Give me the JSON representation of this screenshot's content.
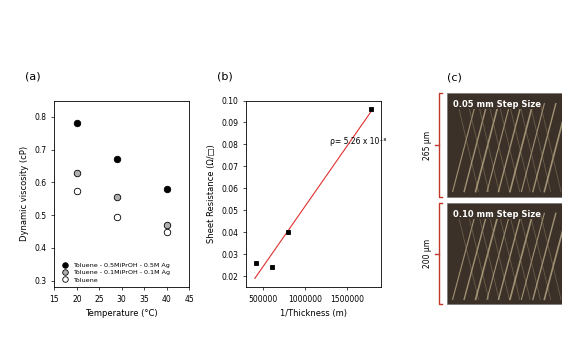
{
  "chart_data": [
    {
      "type": "scatter",
      "title": "(a)",
      "x_label": "Temperature (°C)",
      "y_label": "Dynamic viscosity (cP)",
      "x": [
        20,
        29,
        40
      ],
      "series": [
        {
          "name": "Toluene - 0.5MiPrOH - 0.5M Ag",
          "color": "#000000",
          "marker": "circle",
          "values": [
            0.78,
            0.67,
            0.58
          ]
        },
        {
          "name": "Toluene - 0.1MiPrOH - 0.1M Ag",
          "color": "#b0b0b0",
          "marker": "circle",
          "values": [
            0.63,
            0.555,
            0.47
          ]
        },
        {
          "name": "Toluene",
          "color": "#ffffff",
          "marker": "circle",
          "values": [
            0.575,
            0.495,
            0.45
          ]
        }
      ],
      "xlim": [
        15,
        45
      ],
      "xticks": [
        15,
        20,
        25,
        30,
        35,
        40,
        45
      ],
      "ylim": [
        0.28,
        0.85
      ],
      "yticks": [
        0.3,
        0.4,
        0.5,
        0.6,
        0.7,
        0.8
      ],
      "legend": "lower left"
    },
    {
      "type": "scatter",
      "title": "(b)",
      "x_label": "1/Thickness (m)",
      "y_label": "Sheet Resistance (Ω/□)",
      "annotation": "ρ= 5.26 x 10⁻⁸",
      "series": [
        {
          "color": "#000000",
          "marker": "square",
          "x": [
            420000,
            600000,
            800000,
            1780000
          ],
          "values": [
            0.026,
            0.024,
            0.04,
            0.096
          ]
        },
        {
          "type": "line",
          "color": "#e03030",
          "x": [
            400000,
            1800000
          ],
          "values": [
            0.019,
            0.096
          ]
        }
      ],
      "xlim": [
        300000,
        1900000
      ],
      "xticks": [
        500000,
        1000000,
        1500000
      ],
      "ylim": [
        0.015,
        0.1
      ],
      "yticks": [
        0.02,
        0.03,
        0.04,
        0.05,
        0.06,
        0.07,
        0.08,
        0.09,
        {
          "value": 0.1,
          "label": "0.10"
        }
      ]
    }
  ],
  "image_panel": {
    "title": "(c)",
    "images": [
      {
        "caption": "0.05 mm Step Size",
        "height_label": "265 µm"
      },
      {
        "caption": "0.10 mm Step Size",
        "height_label": "200 µm"
      }
    ]
  }
}
